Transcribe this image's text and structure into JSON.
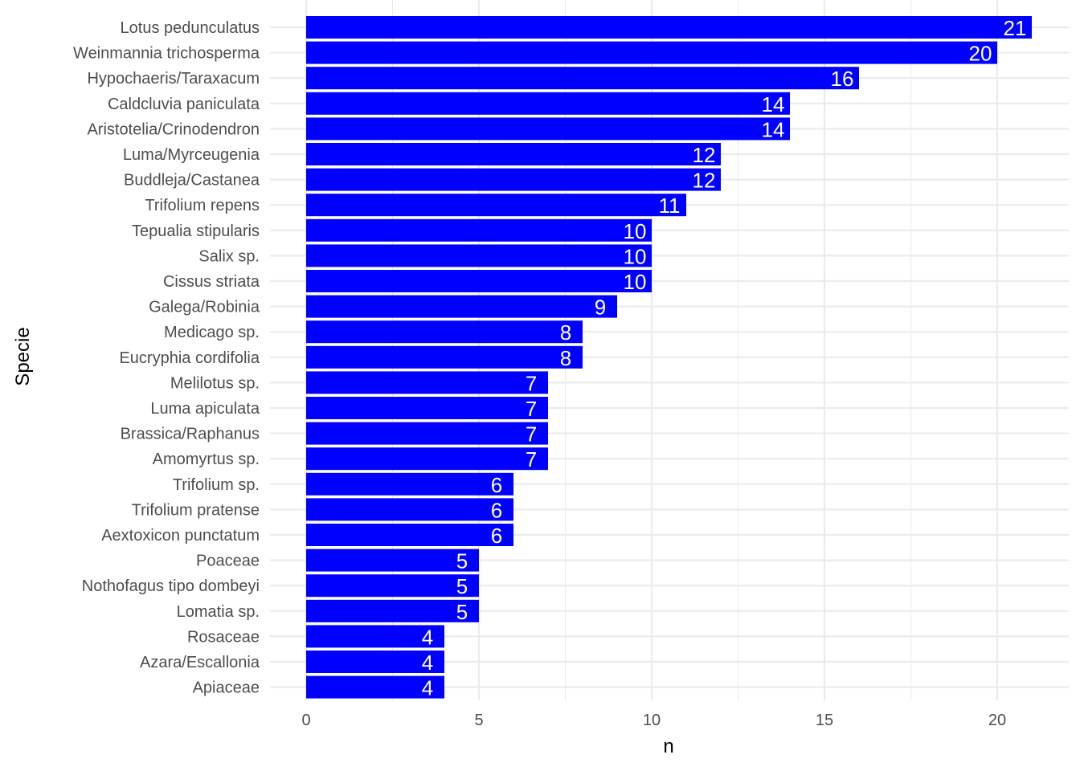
{
  "chart_data": {
    "type": "bar",
    "orientation": "horizontal",
    "xlabel": "n",
    "ylabel": "Specie",
    "xlim": [
      0,
      22
    ],
    "x_ticks": [
      0,
      5,
      10,
      15,
      20
    ],
    "grid": true,
    "legend": "none",
    "bar_color": "#0000ff",
    "label_color": "#ffffff",
    "categories": [
      "Lotus pedunculatus",
      "Weinmannia trichosperma",
      "Hypochaeris/Taraxacum",
      "Caldcluvia paniculata",
      "Aristotelia/Crinodendron",
      "Luma/Myrceugenia",
      "Buddleja/Castanea",
      "Trifolium repens",
      "Tepualia stipularis",
      "Salix sp.",
      "Cissus striata",
      "Galega/Robinia",
      "Medicago sp.",
      "Eucryphia cordifolia",
      "Melilotus sp.",
      "Luma apiculata",
      "Brassica/Raphanus",
      "Amomyrtus sp.",
      "Trifolium sp.",
      "Trifolium pratense",
      "Aextoxicon punctatum",
      "Poaceae",
      "Nothofagus tipo dombeyi",
      "Lomatia sp.",
      "Rosaceae",
      "Azara/Escallonia",
      "Apiaceae"
    ],
    "values": [
      21,
      20,
      16,
      14,
      14,
      12,
      12,
      11,
      10,
      10,
      10,
      9,
      8,
      8,
      7,
      7,
      7,
      7,
      6,
      6,
      6,
      5,
      5,
      5,
      4,
      4,
      4
    ]
  }
}
